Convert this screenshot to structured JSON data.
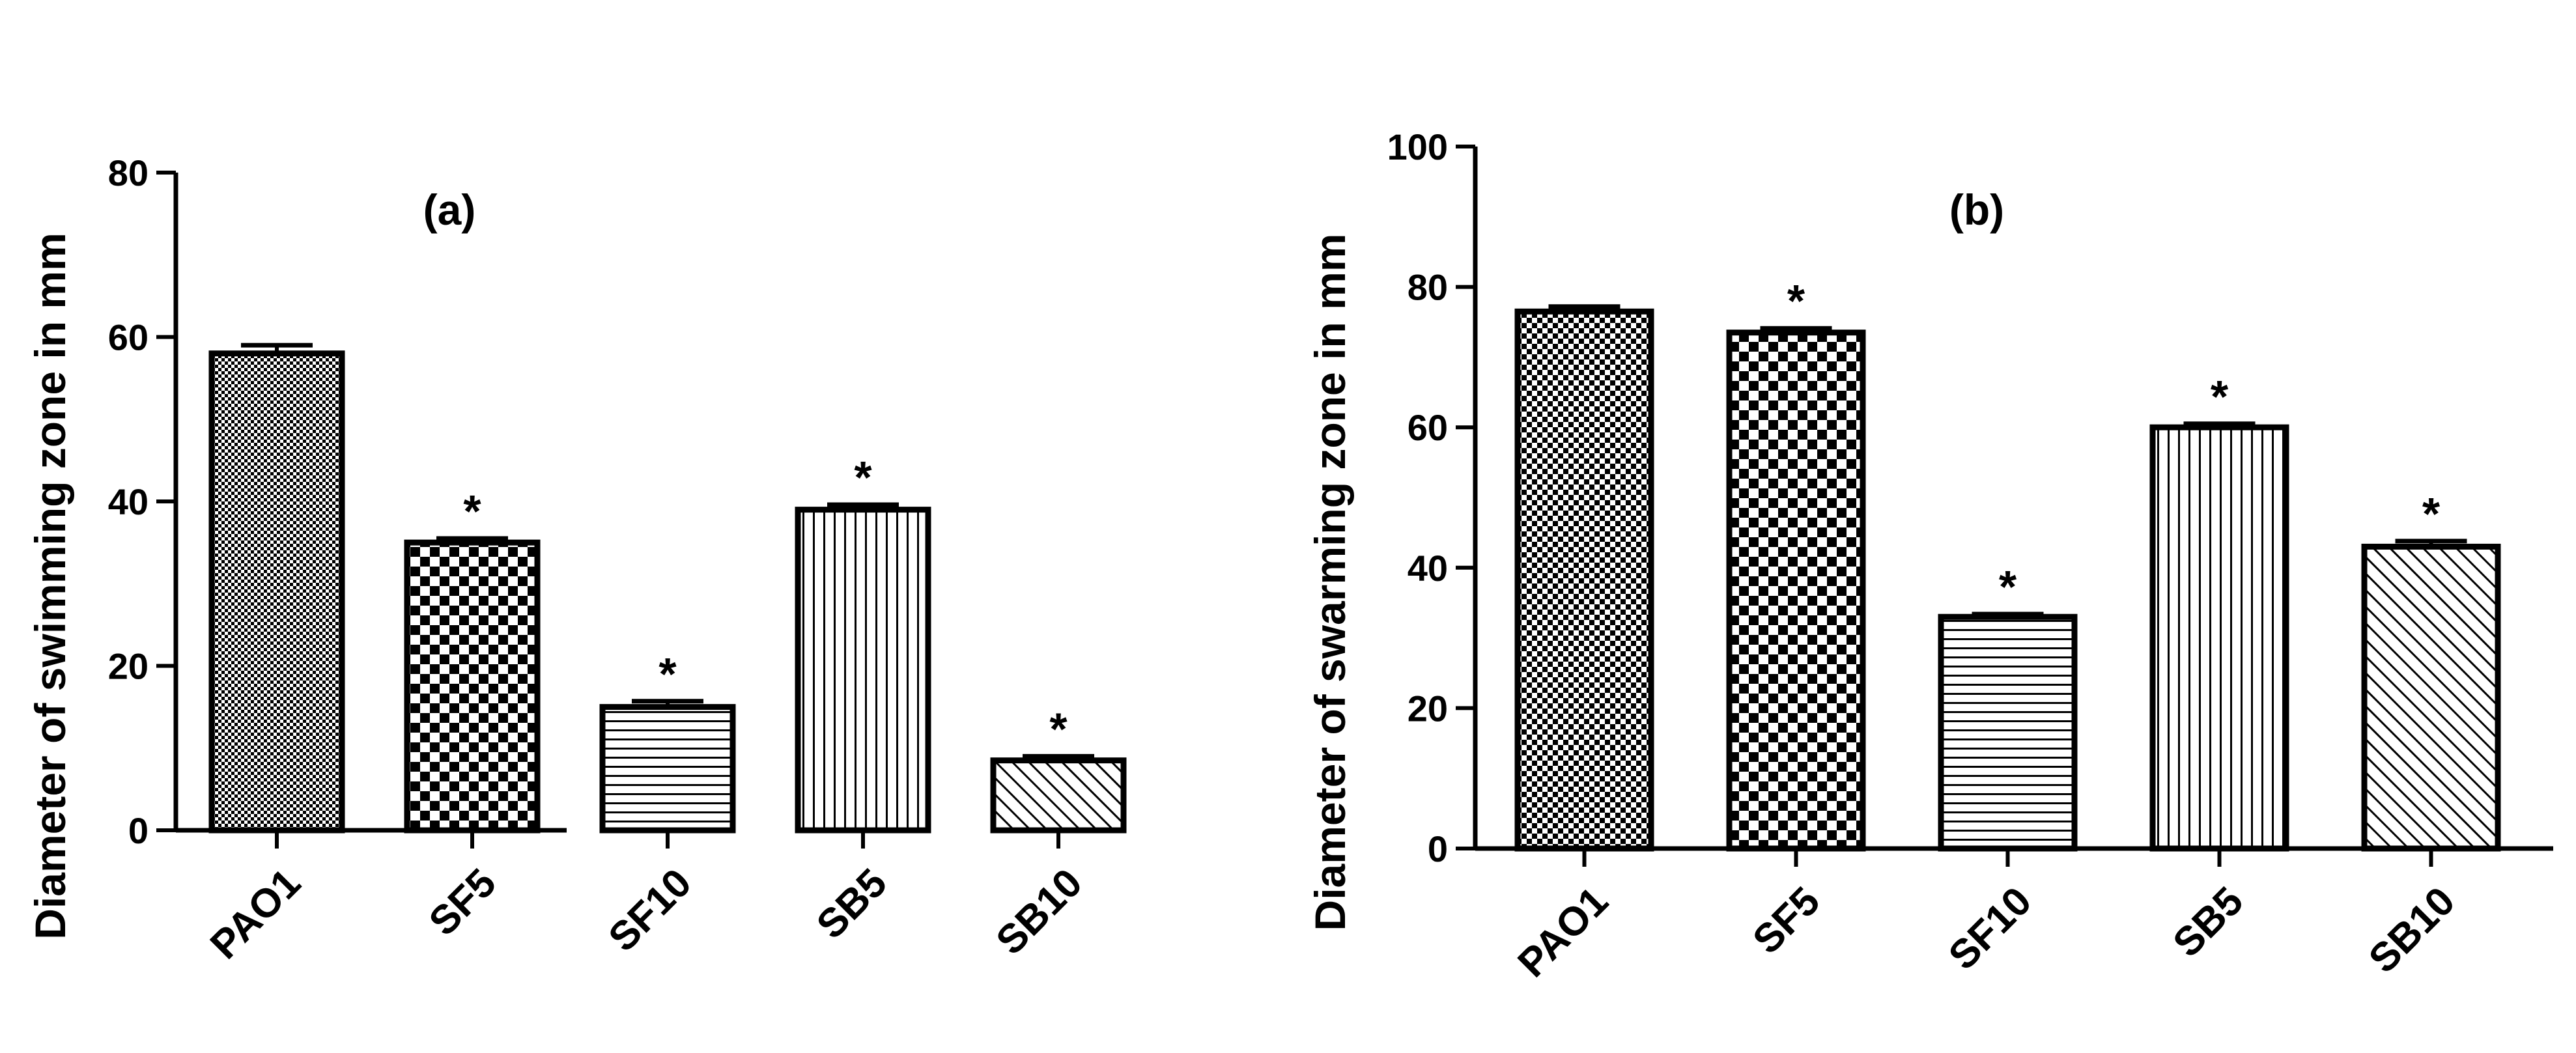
{
  "chart_data": [
    {
      "type": "bar",
      "panel_label": "(a)",
      "title": "",
      "xlabel": "",
      "ylabel": "Diameter of swimming zone in mm",
      "ylim": [
        0,
        80
      ],
      "yticks": [
        0,
        20,
        40,
        60,
        80
      ],
      "categories": [
        "PAO1",
        "SF5",
        "SF10",
        "SB5",
        "SB10"
      ],
      "values": [
        58,
        35,
        15,
        39,
        8.5
      ],
      "errors": [
        1,
        0.5,
        0.7,
        0.6,
        0.5
      ],
      "significance": [
        "",
        "*",
        "*",
        "*",
        "*"
      ],
      "patterns": [
        "fine-dots",
        "checker",
        "horizontal-lines",
        "vertical-lines",
        "diagonal-lines"
      ],
      "grid": false,
      "legend": "none"
    },
    {
      "type": "bar",
      "panel_label": "(b)",
      "title": "",
      "xlabel": "",
      "ylabel": "Diameter of swarming zone in mm",
      "ylim": [
        0,
        100
      ],
      "yticks": [
        0,
        20,
        40,
        60,
        80,
        100
      ],
      "categories": [
        "PAO1",
        "SF5",
        "SF10",
        "SB5",
        "SB10"
      ],
      "values": [
        76.5,
        73.5,
        33,
        60,
        43
      ],
      "errors": [
        0.7,
        0.6,
        0.4,
        0.5,
        0.8
      ],
      "significance": [
        "",
        "*",
        "*",
        "*",
        "*"
      ],
      "patterns": [
        "small-checker",
        "checker",
        "horizontal-lines",
        "vertical-lines",
        "diagonal-lines"
      ],
      "grid": false,
      "legend": "none"
    }
  ]
}
